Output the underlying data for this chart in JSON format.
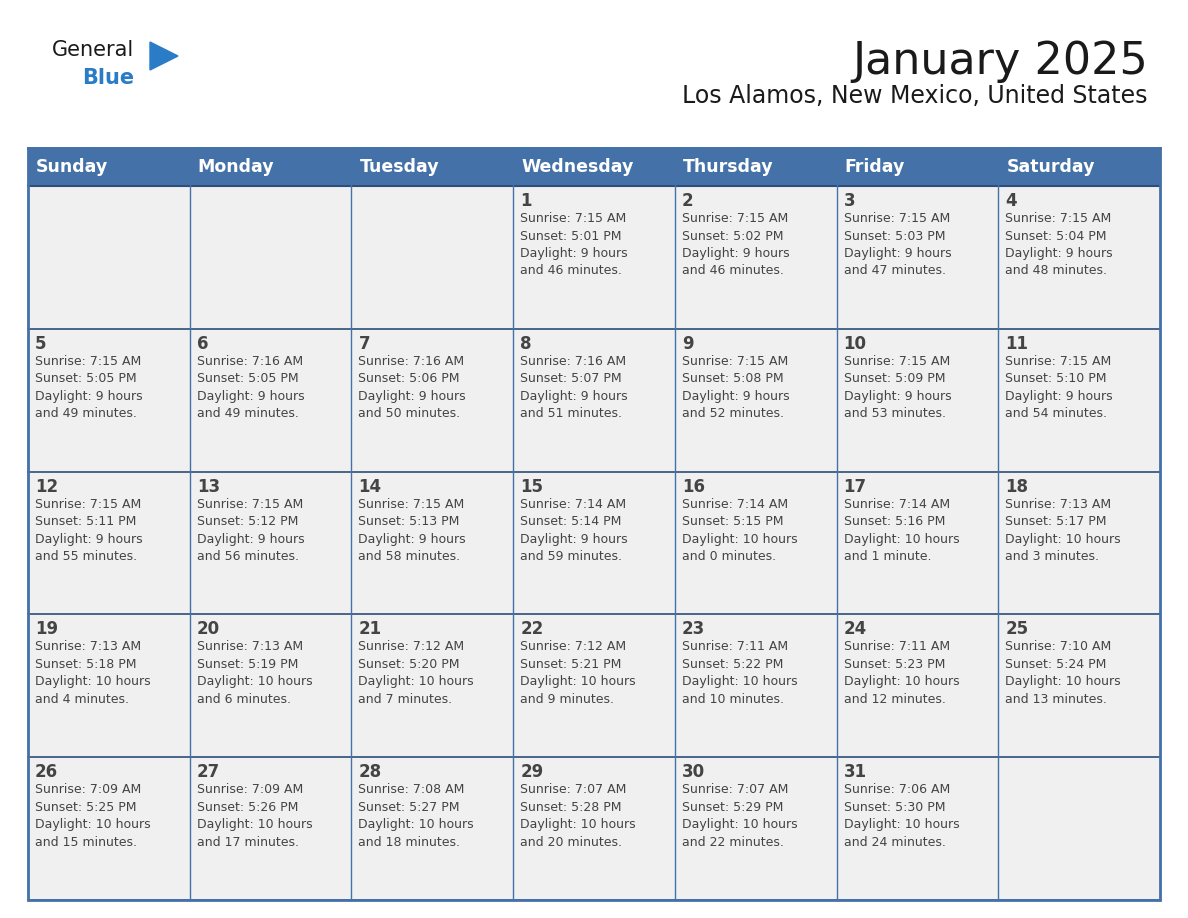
{
  "title": "January 2025",
  "subtitle": "Los Alamos, New Mexico, United States",
  "days_of_week": [
    "Sunday",
    "Monday",
    "Tuesday",
    "Wednesday",
    "Thursday",
    "Friday",
    "Saturday"
  ],
  "header_bg": "#4472a8",
  "header_text": "#ffffff",
  "cell_bg": "#f0f0f0",
  "border_color": "#4472a8",
  "border_color_dark": "#2d4d7a",
  "text_color": "#444444",
  "title_color": "#1a1a1a",
  "logo_black": "#1a1a1a",
  "logo_blue": "#2a7cc7",
  "calendar_data": [
    [
      null,
      null,
      null,
      {
        "day": 1,
        "sunrise": "7:15 AM",
        "sunset": "5:01 PM",
        "daylight_hours": 9,
        "daylight_minutes": 46
      },
      {
        "day": 2,
        "sunrise": "7:15 AM",
        "sunset": "5:02 PM",
        "daylight_hours": 9,
        "daylight_minutes": 46
      },
      {
        "day": 3,
        "sunrise": "7:15 AM",
        "sunset": "5:03 PM",
        "daylight_hours": 9,
        "daylight_minutes": 47
      },
      {
        "day": 4,
        "sunrise": "7:15 AM",
        "sunset": "5:04 PM",
        "daylight_hours": 9,
        "daylight_minutes": 48
      }
    ],
    [
      {
        "day": 5,
        "sunrise": "7:15 AM",
        "sunset": "5:05 PM",
        "daylight_hours": 9,
        "daylight_minutes": 49
      },
      {
        "day": 6,
        "sunrise": "7:16 AM",
        "sunset": "5:05 PM",
        "daylight_hours": 9,
        "daylight_minutes": 49
      },
      {
        "day": 7,
        "sunrise": "7:16 AM",
        "sunset": "5:06 PM",
        "daylight_hours": 9,
        "daylight_minutes": 50
      },
      {
        "day": 8,
        "sunrise": "7:16 AM",
        "sunset": "5:07 PM",
        "daylight_hours": 9,
        "daylight_minutes": 51
      },
      {
        "day": 9,
        "sunrise": "7:15 AM",
        "sunset": "5:08 PM",
        "daylight_hours": 9,
        "daylight_minutes": 52
      },
      {
        "day": 10,
        "sunrise": "7:15 AM",
        "sunset": "5:09 PM",
        "daylight_hours": 9,
        "daylight_minutes": 53
      },
      {
        "day": 11,
        "sunrise": "7:15 AM",
        "sunset": "5:10 PM",
        "daylight_hours": 9,
        "daylight_minutes": 54
      }
    ],
    [
      {
        "day": 12,
        "sunrise": "7:15 AM",
        "sunset": "5:11 PM",
        "daylight_hours": 9,
        "daylight_minutes": 55
      },
      {
        "day": 13,
        "sunrise": "7:15 AM",
        "sunset": "5:12 PM",
        "daylight_hours": 9,
        "daylight_minutes": 56
      },
      {
        "day": 14,
        "sunrise": "7:15 AM",
        "sunset": "5:13 PM",
        "daylight_hours": 9,
        "daylight_minutes": 58
      },
      {
        "day": 15,
        "sunrise": "7:14 AM",
        "sunset": "5:14 PM",
        "daylight_hours": 9,
        "daylight_minutes": 59
      },
      {
        "day": 16,
        "sunrise": "7:14 AM",
        "sunset": "5:15 PM",
        "daylight_hours": 10,
        "daylight_minutes": 0
      },
      {
        "day": 17,
        "sunrise": "7:14 AM",
        "sunset": "5:16 PM",
        "daylight_hours": 10,
        "daylight_minutes": 1
      },
      {
        "day": 18,
        "sunrise": "7:13 AM",
        "sunset": "5:17 PM",
        "daylight_hours": 10,
        "daylight_minutes": 3
      }
    ],
    [
      {
        "day": 19,
        "sunrise": "7:13 AM",
        "sunset": "5:18 PM",
        "daylight_hours": 10,
        "daylight_minutes": 4
      },
      {
        "day": 20,
        "sunrise": "7:13 AM",
        "sunset": "5:19 PM",
        "daylight_hours": 10,
        "daylight_minutes": 6
      },
      {
        "day": 21,
        "sunrise": "7:12 AM",
        "sunset": "5:20 PM",
        "daylight_hours": 10,
        "daylight_minutes": 7
      },
      {
        "day": 22,
        "sunrise": "7:12 AM",
        "sunset": "5:21 PM",
        "daylight_hours": 10,
        "daylight_minutes": 9
      },
      {
        "day": 23,
        "sunrise": "7:11 AM",
        "sunset": "5:22 PM",
        "daylight_hours": 10,
        "daylight_minutes": 10
      },
      {
        "day": 24,
        "sunrise": "7:11 AM",
        "sunset": "5:23 PM",
        "daylight_hours": 10,
        "daylight_minutes": 12
      },
      {
        "day": 25,
        "sunrise": "7:10 AM",
        "sunset": "5:24 PM",
        "daylight_hours": 10,
        "daylight_minutes": 13
      }
    ],
    [
      {
        "day": 26,
        "sunrise": "7:09 AM",
        "sunset": "5:25 PM",
        "daylight_hours": 10,
        "daylight_minutes": 15
      },
      {
        "day": 27,
        "sunrise": "7:09 AM",
        "sunset": "5:26 PM",
        "daylight_hours": 10,
        "daylight_minutes": 17
      },
      {
        "day": 28,
        "sunrise": "7:08 AM",
        "sunset": "5:27 PM",
        "daylight_hours": 10,
        "daylight_minutes": 18
      },
      {
        "day": 29,
        "sunrise": "7:07 AM",
        "sunset": "5:28 PM",
        "daylight_hours": 10,
        "daylight_minutes": 20
      },
      {
        "day": 30,
        "sunrise": "7:07 AM",
        "sunset": "5:29 PM",
        "daylight_hours": 10,
        "daylight_minutes": 22
      },
      {
        "day": 31,
        "sunrise": "7:06 AM",
        "sunset": "5:30 PM",
        "daylight_hours": 10,
        "daylight_minutes": 24
      },
      null
    ]
  ],
  "figsize": [
    11.88,
    9.18
  ],
  "dpi": 100
}
